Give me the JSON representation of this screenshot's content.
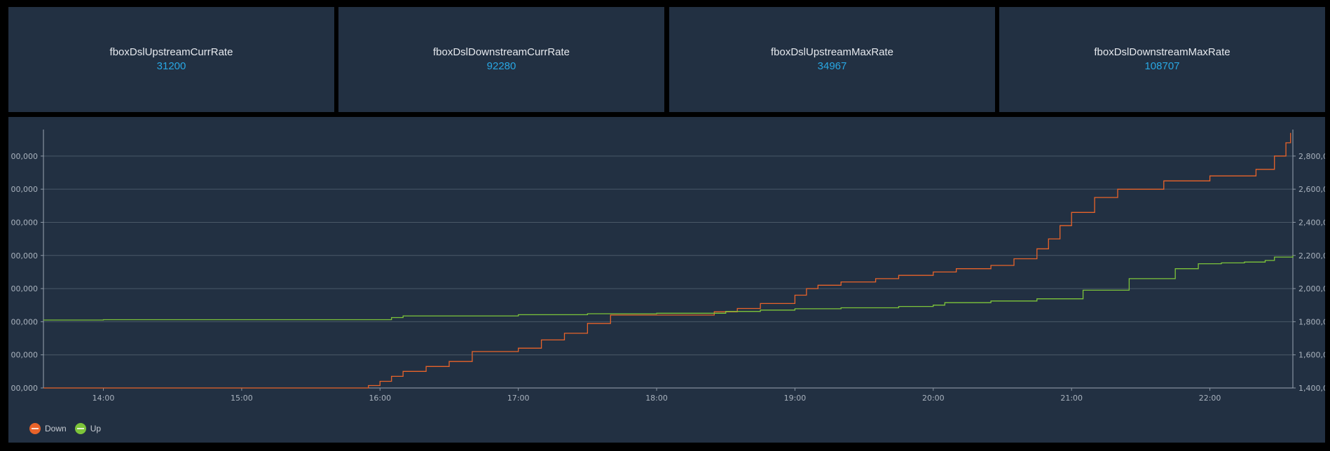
{
  "cards": [
    {
      "title": "fboxDslUpstreamCurrRate",
      "value": "31200"
    },
    {
      "title": "fboxDslDownstreamCurrRate",
      "value": "92280"
    },
    {
      "title": "fboxDslUpstreamMaxRate",
      "value": "34967"
    },
    {
      "title": "fboxDslDownstreamMaxRate",
      "value": "108707"
    }
  ],
  "colors": {
    "background": "#000000",
    "panel": "#223042",
    "value": "#29a7e3",
    "down": "#e8632a",
    "up": "#7dc43a"
  },
  "chart_data": {
    "type": "line",
    "title": "",
    "xlabel": "",
    "ylabel": "",
    "x_ticks": [
      "14:00",
      "15:00",
      "16:00",
      "17:00",
      "18:00",
      "19:00",
      "20:00",
      "21:00",
      "22:00"
    ],
    "x_range": [
      "13:34",
      "22:36"
    ],
    "left_axis": {
      "ticks": [
        "00,000",
        "00,000",
        "00,000",
        "00,000",
        "00,000",
        "00,000",
        "00,000",
        "00,000"
      ],
      "range": [
        0,
        7.8
      ]
    },
    "right_axis": {
      "ticks": [
        "1,400,0",
        "1,600,0",
        "1,800,0",
        "2,000,0",
        "2,200,0",
        "2,400,0",
        "2,600,0",
        "2,800,0"
      ],
      "range": [
        1400000,
        2960000
      ]
    },
    "grid": true,
    "legend_position": "bottom-left",
    "series": [
      {
        "name": "Down",
        "color": "#e8632a",
        "axis": "right",
        "x": [
          "13:34",
          "15:50",
          "15:55",
          "16:00",
          "16:05",
          "16:10",
          "16:20",
          "16:30",
          "16:40",
          "17:00",
          "17:10",
          "17:20",
          "17:30",
          "17:40",
          "17:50",
          "18:00",
          "18:15",
          "18:25",
          "18:35",
          "18:45",
          "19:00",
          "19:05",
          "19:10",
          "19:20",
          "19:35",
          "19:45",
          "20:00",
          "20:10",
          "20:25",
          "20:35",
          "20:45",
          "20:50",
          "20:55",
          "21:00",
          "21:10",
          "21:20",
          "21:40",
          "22:00",
          "22:20",
          "22:28",
          "22:33",
          "22:35"
        ],
        "y": [
          1400000,
          1400000,
          1415000,
          1440000,
          1470000,
          1500000,
          1530000,
          1560000,
          1620000,
          1640000,
          1690000,
          1730000,
          1790000,
          1840000,
          1840000,
          1840000,
          1840000,
          1860000,
          1880000,
          1910000,
          1960000,
          2000000,
          2020000,
          2040000,
          2060000,
          2080000,
          2100000,
          2120000,
          2140000,
          2180000,
          2240000,
          2300000,
          2380000,
          2460000,
          2550000,
          2600000,
          2650000,
          2680000,
          2720000,
          2800000,
          2880000,
          2940000
        ]
      },
      {
        "name": "Up",
        "color": "#7dc43a",
        "axis": "right",
        "x": [
          "13:34",
          "14:00",
          "15:00",
          "15:55",
          "16:05",
          "16:10",
          "17:00",
          "17:30",
          "18:00",
          "18:30",
          "18:45",
          "19:00",
          "19:20",
          "19:45",
          "20:00",
          "20:05",
          "20:25",
          "20:45",
          "21:05",
          "21:25",
          "21:45",
          "21:55",
          "22:05",
          "22:15",
          "22:24",
          "22:28",
          "22:36"
        ],
        "y": [
          1810000,
          1812000,
          1812000,
          1812000,
          1825000,
          1835000,
          1842000,
          1848000,
          1851000,
          1862000,
          1870000,
          1878000,
          1884000,
          1892000,
          1900000,
          1915000,
          1925000,
          1938000,
          1990000,
          2060000,
          2120000,
          2150000,
          2155000,
          2160000,
          2170000,
          2190000,
          2200000
        ]
      }
    ]
  },
  "legend": [
    {
      "label": "Down",
      "color": "#e8632a"
    },
    {
      "label": "Up",
      "color": "#7dc43a"
    }
  ]
}
